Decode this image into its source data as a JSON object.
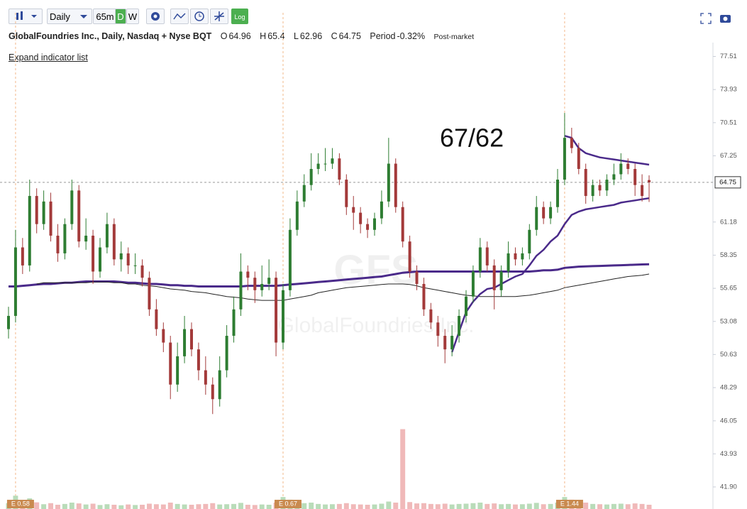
{
  "toolbar": {
    "interval": "Daily",
    "intraday": "65m",
    "daily": "D",
    "weekly": "W",
    "log": "Log"
  },
  "header": {
    "symbol_title": "GlobalFoundries Inc., Daily, Nasdaq + Nyse BQT",
    "open_label": "O",
    "high_label": "H",
    "low_label": "L",
    "close_label": "C",
    "period_label": "Period",
    "period_change": "-0.32%",
    "session": "Post-market",
    "expand_link": "Expand indicator list"
  },
  "watermark": {
    "symbol": "GFS",
    "name": "GlobalFoundries Inc."
  },
  "chart_data": {
    "type": "candlestick",
    "log_scale": true,
    "grid": false,
    "up_color": "#2e7d32",
    "down_color": "#a33a3a",
    "annotation": "67/62",
    "ylim": [
      40.6,
      82.5
    ],
    "yticks": [
      77.51,
      73.93,
      70.51,
      67.25,
      61.18,
      58.35,
      55.65,
      53.08,
      50.63,
      48.29,
      46.05,
      43.93,
      {
        "value": 41.9,
        "label": "41.90"
      }
    ],
    "values": [
      [
        52.5,
        54.2,
        51.8,
        53.5
      ],
      [
        53.5,
        60.5,
        53,
        59
      ],
      [
        59,
        59.8,
        56.8,
        57.5
      ],
      [
        57.5,
        65,
        57,
        63.5
      ],
      [
        63.5,
        64.2,
        60.2,
        61
      ],
      [
        61,
        64,
        60.5,
        63
      ],
      [
        63,
        63.8,
        59.5,
        60
      ],
      [
        60,
        61,
        57.8,
        58.5
      ],
      [
        58.5,
        61.5,
        58,
        61
      ],
      [
        61,
        65,
        60.5,
        64
      ],
      [
        64,
        64.5,
        59,
        59.5
      ],
      [
        59.5,
        61.5,
        58.8,
        60
      ],
      [
        60,
        60.5,
        56,
        57
      ],
      [
        57,
        59.8,
        56.5,
        59
      ],
      [
        59,
        62,
        58.5,
        61
      ],
      [
        61,
        61.5,
        57.5,
        58
      ],
      [
        58,
        59.5,
        57,
        58.5
      ],
      [
        58.5,
        59,
        56.8,
        57.5
      ],
      [
        57.5,
        58.5,
        56.8,
        57.5
      ],
      [
        57.5,
        58,
        55.8,
        56.5
      ],
      [
        56.5,
        57,
        53.5,
        54
      ],
      [
        54,
        54.8,
        52,
        52.5
      ],
      [
        52.5,
        53,
        50.8,
        51.5
      ],
      [
        51.5,
        52,
        47.5,
        48.5
      ],
      [
        48.5,
        51.5,
        48,
        50.5
      ],
      [
        50.5,
        53.5,
        50,
        52.5
      ],
      [
        52.5,
        53,
        50.5,
        51
      ],
      [
        51,
        51.5,
        48.8,
        49.5
      ],
      [
        49.5,
        50.5,
        47.8,
        48.5
      ],
      [
        48.5,
        49,
        46.5,
        47.5
      ],
      [
        47.5,
        50.5,
        47,
        49.5
      ],
      [
        49.5,
        52.8,
        49,
        52
      ],
      [
        52,
        55,
        51.5,
        54
      ],
      [
        54,
        58.5,
        53.5,
        57
      ],
      [
        57,
        57.5,
        55.5,
        56.5
      ],
      [
        56.5,
        57,
        54.5,
        55.5
      ],
      [
        55.5,
        57.5,
        55,
        56
      ],
      [
        56,
        58,
        55.5,
        56.5
      ],
      [
        56.5,
        57,
        50.5,
        51.5
      ],
      [
        51.5,
        56,
        51,
        55.5
      ],
      [
        55.5,
        61.5,
        55,
        60.5
      ],
      [
        60.5,
        64,
        60,
        63
      ],
      [
        63,
        65.5,
        62.5,
        64.5
      ],
      [
        64.5,
        67.5,
        64,
        66
      ],
      [
        66,
        67.5,
        65.5,
        66.5
      ],
      [
        66.5,
        68,
        65.8,
        66.5
      ],
      [
        66.5,
        68,
        66,
        67
      ],
      [
        67,
        67.5,
        64.5,
        65
      ],
      [
        65,
        65.5,
        61.8,
        62.5
      ],
      [
        62.5,
        63.5,
        60.5,
        62
      ],
      [
        62,
        62.5,
        60.2,
        61
      ],
      [
        61,
        61.5,
        59.8,
        60.5
      ],
      [
        60.5,
        62,
        60,
        61.5
      ],
      [
        61.5,
        64,
        61,
        63
      ],
      [
        63,
        69,
        62.5,
        66.5
      ],
      [
        66.5,
        67,
        62,
        62.5
      ],
      [
        62.5,
        63,
        59,
        59.5
      ],
      [
        59.5,
        60,
        56.5,
        57
      ],
      [
        57,
        57.5,
        55.5,
        56
      ],
      [
        56,
        56.5,
        53.5,
        54
      ],
      [
        54,
        54.5,
        52.5,
        53
      ],
      [
        53,
        53.5,
        51.2,
        52
      ],
      [
        52,
        52.5,
        50,
        51
      ],
      [
        51,
        52.8,
        50.5,
        52
      ],
      [
        52,
        54,
        51.5,
        53.5
      ],
      [
        53.5,
        55.5,
        53,
        55
      ],
      [
        55,
        57.5,
        54.5,
        57
      ],
      [
        57,
        59.8,
        56.5,
        59
      ],
      [
        59,
        59.5,
        57,
        57.5
      ],
      [
        57.5,
        58,
        54,
        55.5
      ],
      [
        55.5,
        57.5,
        55,
        57
      ],
      [
        57,
        59.5,
        56.5,
        58.5
      ],
      [
        58.5,
        59,
        57.5,
        58
      ],
      [
        58,
        59,
        57.5,
        58.5
      ],
      [
        58.5,
        61,
        58,
        60.5
      ],
      [
        60.5,
        63.5,
        60,
        62.5
      ],
      [
        62.5,
        63,
        61,
        61.5
      ],
      [
        61.5,
        63,
        61,
        62.5
      ],
      [
        62.5,
        66,
        62,
        65
      ],
      [
        65,
        71.5,
        64.5,
        69
      ],
      [
        69,
        70,
        67.5,
        68
      ],
      [
        68,
        68.5,
        65.5,
        66
      ],
      [
        66,
        66.5,
        62.8,
        63.5
      ],
      [
        63.5,
        65,
        63,
        64.5
      ],
      [
        64.5,
        65,
        63.5,
        64
      ],
      [
        64,
        65.5,
        63.5,
        65
      ],
      [
        65,
        66.5,
        64.5,
        65.5
      ],
      [
        65.5,
        67.5,
        65,
        66.5
      ],
      [
        66.5,
        67,
        65.5,
        66
      ],
      [
        66,
        66.5,
        63.5,
        64.5
      ],
      [
        64.5,
        65.5,
        63,
        63.5
      ],
      [
        64.96,
        65.4,
        62.96,
        64.75
      ]
    ],
    "series": [
      {
        "color": "#4a2a8a",
        "width": 3,
        "values": [
          55.8,
          55.8,
          55.85,
          55.9,
          55.95,
          56,
          56,
          56.05,
          56.1,
          56.1,
          56.15,
          56.2,
          56.2,
          56.2,
          56.2,
          56.2,
          56.15,
          56.1,
          56.1,
          56.05,
          56,
          56,
          55.95,
          55.9,
          55.9,
          55.85,
          55.85,
          55.8,
          55.8,
          55.8,
          55.8,
          55.8,
          55.8,
          55.8,
          55.85,
          55.85,
          55.85,
          55.85,
          55.85,
          55.9,
          55.95,
          56,
          56.05,
          56.1,
          56.15,
          56.2,
          56.25,
          56.3,
          56.35,
          56.4,
          56.45,
          56.5,
          56.55,
          56.6,
          56.7,
          56.8,
          56.9,
          56.95,
          57,
          57,
          57,
          57,
          57,
          57,
          57,
          57,
          57,
          57,
          57,
          57,
          57,
          57,
          57,
          57,
          57,
          57.05,
          57.1,
          57.1,
          57.15,
          57.3,
          57.35,
          57.4,
          57.42,
          57.44,
          57.46,
          57.48,
          57.5,
          57.52,
          57.54,
          57.56,
          57.58,
          57.6
        ]
      },
      {
        "color": "#222222",
        "width": 1,
        "values": [
          null,
          null,
          null,
          null,
          56,
          56.1,
          56.1,
          56.1,
          56.1,
          56.1,
          56.1,
          56.1,
          56.15,
          56.15,
          56.15,
          56.1,
          56.1,
          56,
          56,
          55.9,
          55.85,
          55.8,
          55.7,
          55.6,
          55.55,
          55.5,
          55.4,
          55.35,
          55.3,
          55.2,
          55.1,
          55,
          54.95,
          54.9,
          54.8,
          54.75,
          54.7,
          54.7,
          54.7,
          54.7,
          54.8,
          54.9,
          55,
          55.1,
          55.3,
          55.4,
          55.5,
          55.6,
          55.7,
          55.75,
          55.8,
          55.85,
          55.9,
          55.95,
          56,
          56,
          56,
          55.95,
          55.85,
          55.7,
          55.6,
          55.5,
          55.4,
          55.3,
          55.2,
          55.1,
          55.05,
          55,
          55,
          55,
          55,
          55,
          55,
          55.05,
          55.1,
          55.2,
          55.3,
          55.4,
          55.5,
          55.7,
          55.8,
          55.9,
          56,
          56.1,
          56.2,
          56.3,
          56.4,
          56.5,
          56.6,
          56.65,
          56.7,
          56.8
        ]
      },
      {
        "color": "#4a2a8a",
        "width": 2.5,
        "values": [
          null,
          null,
          null,
          null,
          null,
          null,
          null,
          null,
          null,
          null,
          null,
          null,
          null,
          null,
          null,
          null,
          null,
          null,
          null,
          null,
          null,
          null,
          null,
          null,
          null,
          null,
          null,
          null,
          null,
          null,
          null,
          null,
          null,
          null,
          null,
          null,
          null,
          null,
          null,
          null,
          null,
          null,
          null,
          null,
          null,
          null,
          null,
          null,
          null,
          null,
          null,
          null,
          null,
          null,
          null,
          null,
          null,
          null,
          null,
          null,
          null,
          null,
          null,
          50.8,
          52.3,
          53.8,
          54.6,
          55.2,
          55.6,
          55.7,
          56,
          56.3,
          56.6,
          56.8,
          57.5,
          58.3,
          58.8,
          59.5,
          60,
          61,
          61.8,
          62.1,
          62.3,
          62.4,
          62.5,
          62.6,
          62.7,
          62.9,
          63,
          63.1,
          63.2,
          63.3
        ]
      },
      {
        "color": "#4a2a8a",
        "width": 2.5,
        "values": [
          null,
          null,
          null,
          null,
          null,
          null,
          null,
          null,
          null,
          null,
          null,
          null,
          null,
          null,
          null,
          null,
          null,
          null,
          null,
          null,
          null,
          null,
          null,
          null,
          null,
          null,
          null,
          null,
          null,
          null,
          null,
          null,
          null,
          null,
          null,
          null,
          null,
          null,
          null,
          null,
          null,
          null,
          null,
          null,
          null,
          null,
          null,
          null,
          null,
          null,
          null,
          null,
          null,
          null,
          null,
          null,
          null,
          null,
          null,
          null,
          null,
          null,
          null,
          null,
          null,
          null,
          null,
          null,
          null,
          null,
          null,
          null,
          null,
          null,
          null,
          null,
          null,
          null,
          null,
          69.2,
          69,
          68,
          67.5,
          67.3,
          67.1,
          67,
          66.9,
          66.8,
          66.7,
          66.6,
          66.5,
          66.4
        ]
      }
    ],
    "volume": {
      "vlim": [
        0,
        32
      ],
      "values": [
        2.2,
        5,
        2,
        4,
        2.5,
        1.8,
        2.2,
        1.6,
        1.9,
        2.4,
        2.1,
        1.7,
        2,
        1.5,
        1.8,
        1.6,
        1.4,
        1.7,
        1.5,
        1.6,
        2,
        1.8,
        1.7,
        2.4,
        1.9,
        1.7,
        1.6,
        1.8,
        1.9,
        2.2,
        1.7,
        1.8,
        1.9,
        2.3,
        1.6,
        1.5,
        1.7,
        1.6,
        2.4,
        4.5,
        3.5,
        2.6,
        2.2,
        2.4,
        1.9,
        1.7,
        1.8,
        1.9,
        2.2,
        1.8,
        1.7,
        1.6,
        1.7,
        2,
        2.8,
        2.4,
        30,
        2.6,
        2.1,
        2.2,
        1.9,
        1.8,
        2,
        1.7,
        1.9,
        2,
        2.2,
        2.4,
        1.9,
        2.1,
        1.8,
        1.9,
        1.7,
        1.8,
        2,
        2.3,
        1.8,
        1.9,
        2.4,
        4.5,
        3.5,
        2.6,
        2.4,
        1.9,
        1.8,
        1.7,
        1.9,
        2,
        1.8,
        2.1,
        1.9,
        1.6
      ]
    },
    "events": [
      {
        "label": "E 0.58",
        "index": 1
      },
      {
        "label": "E 0.67",
        "index": 39
      },
      {
        "label": "E 1.44",
        "index": 79
      }
    ]
  }
}
